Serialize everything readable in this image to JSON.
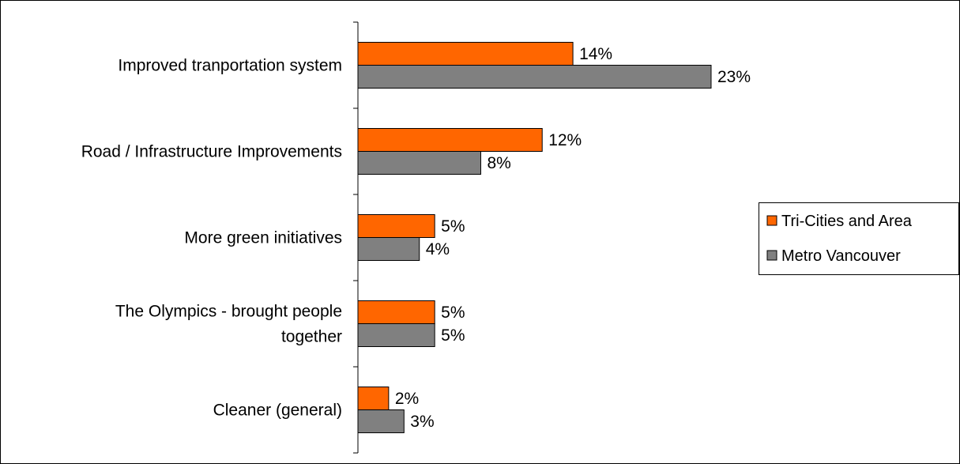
{
  "chart_data": {
    "type": "bar",
    "orientation": "horizontal",
    "categories": [
      "Improved tranportation system",
      "Road / Infrastructure Improvements",
      "More green initiatives",
      "The Olympics - brought people together",
      "Cleaner (general)"
    ],
    "category_lines": [
      [
        "Improved tranportation system"
      ],
      [
        "Road / Infrastructure Improvements"
      ],
      [
        "More green initiatives"
      ],
      [
        "The Olympics - brought people",
        "together"
      ],
      [
        "Cleaner (general)"
      ]
    ],
    "series": [
      {
        "name": "Tri-Cities and Area",
        "color": "#FF6600",
        "values": [
          14,
          12,
          5,
          5,
          2
        ],
        "labels": [
          "14%",
          "12%",
          "5%",
          "5%",
          "2%"
        ]
      },
      {
        "name": "Metro Vancouver",
        "color": "#808080",
        "values": [
          23,
          8,
          4,
          5,
          3
        ],
        "labels": [
          "23%",
          "8%",
          "4%",
          "5%",
          "3%"
        ]
      }
    ],
    "xlim": [
      0,
      25
    ],
    "value_unit": "%",
    "title": "",
    "xlabel": "",
    "ylabel": "",
    "grid": false,
    "legend_position": "right"
  }
}
